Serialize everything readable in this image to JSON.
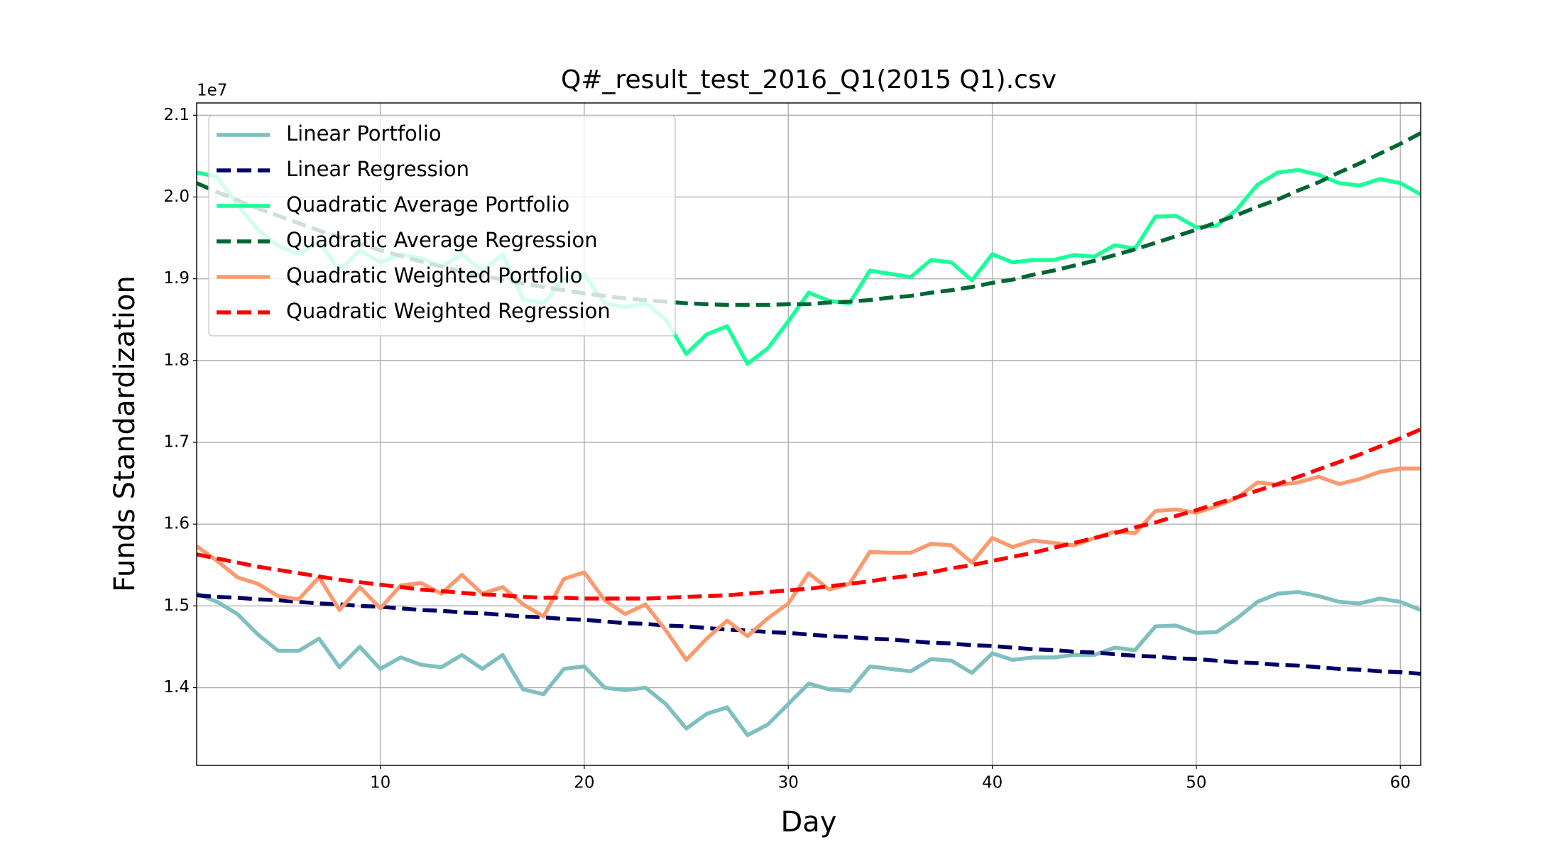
{
  "chart_data": {
    "type": "line",
    "title": "Q#_result_test_2016_Q1(2015 Q1).csv",
    "x_label": "Day",
    "y_label": "Funds Standardization",
    "y_offset_label": "1e7",
    "x": [
      1,
      2,
      3,
      4,
      5,
      6,
      7,
      8,
      9,
      10,
      11,
      12,
      13,
      14,
      15,
      16,
      17,
      18,
      19,
      20,
      21,
      22,
      23,
      24,
      25,
      26,
      27,
      28,
      29,
      30,
      31,
      32,
      33,
      34,
      35,
      36,
      37,
      38,
      39,
      40,
      41,
      42,
      43,
      44,
      45,
      46,
      47,
      48,
      49,
      50,
      51,
      52,
      53,
      54,
      55,
      56,
      57,
      58,
      59,
      60,
      61
    ],
    "series": [
      {
        "name": "Linear Portfolio",
        "color": "#7fbfbf",
        "linestyle": "solid",
        "values": [
          1.515,
          1.505,
          1.49,
          1.465,
          1.445,
          1.445,
          1.46,
          1.425,
          1.45,
          1.423,
          1.437,
          1.428,
          1.425,
          1.44,
          1.423,
          1.44,
          1.398,
          1.392,
          1.423,
          1.426,
          1.4,
          1.397,
          1.4,
          1.38,
          1.35,
          1.368,
          1.376,
          1.342,
          1.355,
          1.38,
          1.405,
          1.398,
          1.396,
          1.426,
          1.423,
          1.42,
          1.435,
          1.433,
          1.418,
          1.442,
          1.434,
          1.437,
          1.437,
          1.44,
          1.44,
          1.449,
          1.446,
          1.475,
          1.476,
          1.467,
          1.468,
          1.485,
          1.505,
          1.515,
          1.517,
          1.512,
          1.505,
          1.503,
          1.509,
          1.505,
          1.495
        ]
      },
      {
        "name": "Linear Regression",
        "color": "#000066",
        "linestyle": "dashed",
        "values": [
          1.513,
          1.511,
          1.51,
          1.508,
          1.507,
          1.505,
          1.503,
          1.502,
          1.5,
          1.499,
          1.497,
          1.495,
          1.494,
          1.492,
          1.491,
          1.489,
          1.487,
          1.486,
          1.484,
          1.483,
          1.481,
          1.479,
          1.478,
          1.476,
          1.475,
          1.473,
          1.471,
          1.47,
          1.468,
          1.467,
          1.465,
          1.463,
          1.462,
          1.46,
          1.459,
          1.457,
          1.455,
          1.454,
          1.452,
          1.451,
          1.449,
          1.447,
          1.446,
          1.444,
          1.443,
          1.441,
          1.439,
          1.438,
          1.436,
          1.435,
          1.433,
          1.431,
          1.43,
          1.428,
          1.427,
          1.425,
          1.423,
          1.422,
          1.42,
          1.419,
          1.417
        ]
      },
      {
        "name": "Quadratic Average Portfolio",
        "color": "#1aff99",
        "linestyle": "solid",
        "values": [
          2.03,
          2.025,
          1.99,
          1.96,
          1.94,
          1.93,
          1.945,
          1.91,
          1.935,
          1.92,
          1.93,
          1.925,
          1.915,
          1.93,
          1.91,
          1.93,
          1.875,
          1.87,
          1.9,
          1.905,
          1.87,
          1.865,
          1.87,
          1.85,
          1.808,
          1.832,
          1.842,
          1.796,
          1.815,
          1.848,
          1.883,
          1.873,
          1.87,
          1.91,
          1.906,
          1.902,
          1.923,
          1.92,
          1.898,
          1.93,
          1.92,
          1.923,
          1.923,
          1.929,
          1.927,
          1.941,
          1.937,
          1.976,
          1.977,
          1.963,
          1.965,
          1.985,
          2.015,
          2.03,
          2.033,
          2.027,
          2.017,
          2.014,
          2.022,
          2.017,
          2.003
        ]
      },
      {
        "name": "Quadratic Average Regression",
        "color": "#006633",
        "linestyle": "dashed",
        "values": [
          2.017,
          2.006,
          1.996,
          1.986,
          1.977,
          1.968,
          1.959,
          1.951,
          1.943,
          1.935,
          1.928,
          1.921,
          1.915,
          1.909,
          1.904,
          1.899,
          1.894,
          1.89,
          1.886,
          1.882,
          1.879,
          1.876,
          1.874,
          1.872,
          1.87,
          1.869,
          1.868,
          1.868,
          1.868,
          1.869,
          1.869,
          1.871,
          1.872,
          1.874,
          1.877,
          1.879,
          1.883,
          1.886,
          1.89,
          1.895,
          1.899,
          1.905,
          1.91,
          1.916,
          1.922,
          1.929,
          1.936,
          1.944,
          1.952,
          1.96,
          1.969,
          1.978,
          1.988,
          1.997,
          2.008,
          2.018,
          2.03,
          2.041,
          2.053,
          2.065,
          2.078
        ]
      },
      {
        "name": "Quadratic Weighted Portfolio",
        "color": "#fa9a6e",
        "linestyle": "solid",
        "values": [
          1.573,
          1.555,
          1.535,
          1.527,
          1.512,
          1.508,
          1.535,
          1.495,
          1.523,
          1.497,
          1.525,
          1.528,
          1.515,
          1.538,
          1.515,
          1.523,
          1.502,
          1.487,
          1.533,
          1.541,
          1.507,
          1.49,
          1.502,
          1.47,
          1.434,
          1.46,
          1.482,
          1.463,
          1.485,
          1.503,
          1.54,
          1.52,
          1.527,
          1.566,
          1.565,
          1.565,
          1.576,
          1.574,
          1.553,
          1.583,
          1.572,
          1.58,
          1.577,
          1.574,
          1.583,
          1.591,
          1.589,
          1.616,
          1.618,
          1.614,
          1.622,
          1.632,
          1.651,
          1.648,
          1.651,
          1.658,
          1.649,
          1.655,
          1.664,
          1.668,
          1.668
        ]
      },
      {
        "name": "Quadratic Weighted Regression",
        "color": "#ff0000",
        "linestyle": "dashed",
        "values": [
          1.563,
          1.558,
          1.553,
          1.548,
          1.544,
          1.54,
          1.536,
          1.532,
          1.529,
          1.526,
          1.523,
          1.52,
          1.518,
          1.516,
          1.514,
          1.513,
          1.511,
          1.51,
          1.51,
          1.509,
          1.509,
          1.509,
          1.509,
          1.51,
          1.511,
          1.512,
          1.513,
          1.515,
          1.517,
          1.519,
          1.521,
          1.524,
          1.527,
          1.53,
          1.534,
          1.537,
          1.541,
          1.546,
          1.55,
          1.555,
          1.56,
          1.565,
          1.571,
          1.577,
          1.583,
          1.589,
          1.596,
          1.602,
          1.61,
          1.617,
          1.625,
          1.633,
          1.641,
          1.649,
          1.658,
          1.667,
          1.676,
          1.685,
          1.695,
          1.705,
          1.716
        ]
      }
    ],
    "xlim": [
      1,
      61
    ],
    "xticks": [
      10,
      20,
      30,
      40,
      50,
      60
    ],
    "ylim": [
      1.305,
      2.115
    ],
    "yticks": [
      1.4,
      1.5,
      1.6,
      1.7,
      1.8,
      1.9,
      {
        "value": 2,
        "label": "2.0"
      },
      2.1
    ],
    "grid": true,
    "legend": "upper left"
  }
}
